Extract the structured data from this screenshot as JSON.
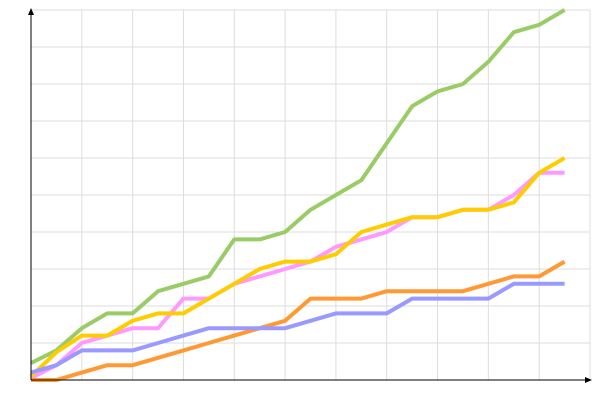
{
  "chart_data": {
    "type": "line",
    "x": [
      0,
      0.5,
      1,
      1.5,
      2,
      2.5,
      3,
      3.5,
      4,
      4.5,
      5,
      5.5,
      6,
      6.5,
      7,
      7.5,
      8,
      8.5,
      9,
      9.5,
      10,
      10.5
    ],
    "series": [
      {
        "color": "#99cc66",
        "values": [
          0.46,
          0.8,
          1.4,
          1.8,
          1.8,
          2.4,
          2.6,
          2.8,
          3.8,
          3.8,
          4.0,
          4.6,
          5.0,
          5.4,
          6.4,
          7.4,
          7.8,
          8.0,
          8.6,
          9.4,
          9.6,
          10.0
        ]
      },
      {
        "color": "#ff99ff",
        "values": [
          0.05,
          0.4,
          1.0,
          1.2,
          1.4,
          1.4,
          2.2,
          2.2,
          2.6,
          2.8,
          3.0,
          3.2,
          3.6,
          3.8,
          4.0,
          4.4,
          4.4,
          4.6,
          4.6,
          5.0,
          5.6,
          5.6
        ]
      },
      {
        "color": "#ffcc00",
        "values": [
          0.1,
          0.75,
          1.2,
          1.2,
          1.6,
          1.8,
          1.8,
          2.2,
          2.6,
          3.0,
          3.2,
          3.2,
          3.4,
          4.0,
          4.2,
          4.4,
          4.4,
          4.6,
          4.6,
          4.8,
          5.6,
          6.0
        ]
      },
      {
        "color": "#ff9933",
        "values": [
          0,
          0,
          0.2,
          0.4,
          0.4,
          0.6,
          0.8,
          1.0,
          1.2,
          1.4,
          1.6,
          2.2,
          2.2,
          2.2,
          2.4,
          2.4,
          2.4,
          2.4,
          2.6,
          2.8,
          2.8,
          3.2
        ]
      },
      {
        "color": "#9999ff",
        "values": [
          0.2,
          0.4,
          0.8,
          0.8,
          0.8,
          1.0,
          1.2,
          1.4,
          1.4,
          1.4,
          1.4,
          1.6,
          1.8,
          1.8,
          1.8,
          2.2,
          2.2,
          2.2,
          2.2,
          2.6,
          2.6,
          2.6
        ]
      }
    ],
    "xlim": [
      0,
      11
    ],
    "ylim": [
      0,
      10
    ],
    "xticks": [
      1,
      2,
      3,
      4,
      5,
      6,
      7,
      8,
      9,
      10,
      11
    ],
    "yticks": [
      1,
      2,
      3,
      4,
      5,
      6,
      7,
      8,
      9,
      10
    ],
    "grid": true
  }
}
